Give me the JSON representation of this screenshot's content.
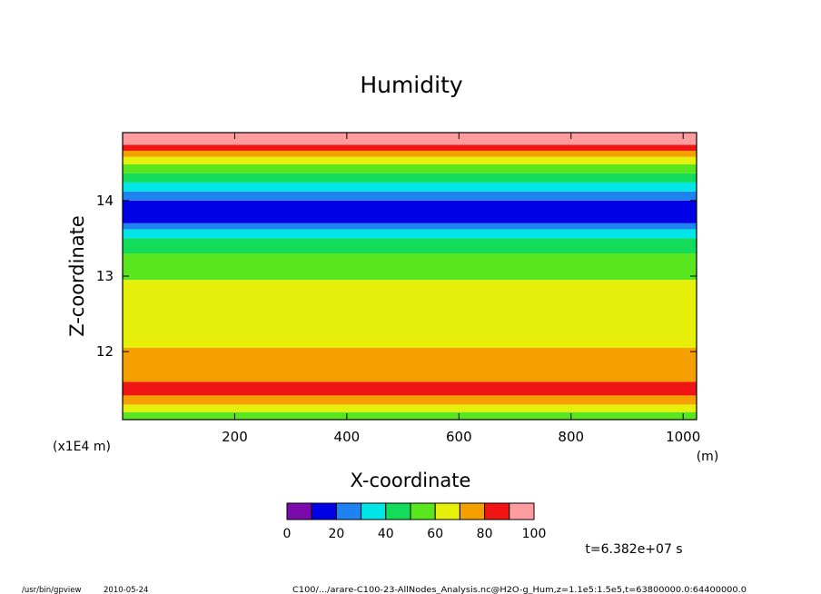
{
  "chart_data": {
    "type": "heatmap",
    "title": "Humidity",
    "xlabel": "X-coordinate",
    "ylabel": "Z-coordinate",
    "x_unit": "(m)",
    "y_unit": "(x1E4 m)",
    "xlim": [
      0,
      1024
    ],
    "ylim": [
      11.1,
      14.9
    ],
    "x_ticks": [
      "200",
      "400",
      "600",
      "800",
      "1000"
    ],
    "y_ticks": [
      "12",
      "13",
      "14"
    ],
    "colorbar": {
      "levels": [
        0,
        10,
        20,
        30,
        40,
        50,
        60,
        70,
        80,
        90,
        100
      ],
      "tick_labels": [
        "0",
        "20",
        "40",
        "60",
        "80",
        "100"
      ],
      "colors": [
        "#7a0aac",
        "#0000e6",
        "#1e82f0",
        "#00e6e6",
        "#12dc5a",
        "#5ae61e",
        "#e6f00a",
        "#f5a000",
        "#f01414",
        "#ff9ca0"
      ]
    },
    "bands": [
      {
        "z_low": 11.1,
        "z_high": 11.2,
        "level": 50
      },
      {
        "z_low": 11.2,
        "z_high": 11.3,
        "level": 60
      },
      {
        "z_low": 11.3,
        "z_high": 11.42,
        "level": 70
      },
      {
        "z_low": 11.42,
        "z_high": 11.6,
        "level": 80
      },
      {
        "z_low": 11.6,
        "z_high": 12.05,
        "level": 70
      },
      {
        "z_low": 12.05,
        "z_high": 12.95,
        "level": 60
      },
      {
        "z_low": 12.95,
        "z_high": 13.3,
        "level": 50
      },
      {
        "z_low": 13.3,
        "z_high": 13.5,
        "level": 40
      },
      {
        "z_low": 13.5,
        "z_high": 13.62,
        "level": 30
      },
      {
        "z_low": 13.62,
        "z_high": 13.7,
        "level": 20
      },
      {
        "z_low": 13.7,
        "z_high": 14.0,
        "level": 10
      },
      {
        "z_low": 14.0,
        "z_high": 14.12,
        "level": 20
      },
      {
        "z_low": 14.12,
        "z_high": 14.24,
        "level": 30
      },
      {
        "z_low": 14.24,
        "z_high": 14.36,
        "level": 40
      },
      {
        "z_low": 14.36,
        "z_high": 14.48,
        "level": 50
      },
      {
        "z_low": 14.48,
        "z_high": 14.58,
        "level": 60
      },
      {
        "z_low": 14.58,
        "z_high": 14.66,
        "level": 70
      },
      {
        "z_low": 14.66,
        "z_high": 14.74,
        "level": 80
      },
      {
        "z_low": 14.74,
        "z_high": 14.9,
        "level": 90
      }
    ],
    "annotation": "t=6.382e+07 s"
  },
  "footer": {
    "program": "/usr/bin/gpview",
    "date": "2010-05-24",
    "source": "C100/.../arare-C100-23-AllNodes_Analysis.nc@H2O-g_Hum,z=1.1e5:1.5e5,t=63800000.0:64400000.0"
  }
}
